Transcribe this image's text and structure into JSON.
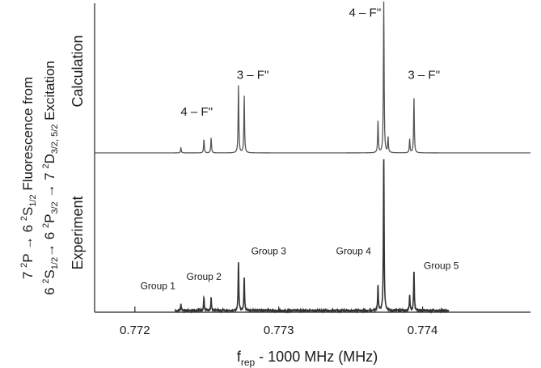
{
  "chart_data": {
    "type": "line",
    "title": "",
    "xlabel": {
      "base": "f",
      "sub": "rep",
      "rest": " - 1000 MHz (MHz)"
    },
    "ylabel_line1": [
      {
        "t": "7 "
      },
      {
        "t": "2",
        "k": "sup"
      },
      {
        "t": "P → 6 "
      },
      {
        "t": "2",
        "k": "sup"
      },
      {
        "t": "S"
      },
      {
        "t": "1/2",
        "k": "sub"
      },
      {
        "t": " Fluorescence from"
      }
    ],
    "ylabel_line2": [
      {
        "t": "6 "
      },
      {
        "t": "2",
        "k": "sup"
      },
      {
        "t": "S"
      },
      {
        "t": "1/2",
        "k": "sub"
      },
      {
        "t": "→ 6 "
      },
      {
        "t": "2",
        "k": "sup"
      },
      {
        "t": "P"
      },
      {
        "t": "3/2",
        "k": "sub"
      },
      {
        "t": " → 7 "
      },
      {
        "t": "2",
        "k": "sup"
      },
      {
        "t": "D"
      },
      {
        "t": "3/2, 5/2",
        "k": "sub"
      },
      {
        "t": " Excitation"
      }
    ],
    "xlim": [
      0.77172,
      0.77475
    ],
    "xticks": [
      0.772,
      0.773,
      0.774
    ],
    "xtick_labels": [
      "0.772",
      "0.773",
      "0.774"
    ],
    "grid": false,
    "panels": [
      {
        "label": "Calculation",
        "ylim": [
          0,
          1
        ],
        "x_range": [
          0.77172,
          0.77475
        ],
        "noise": 0.0,
        "peaks": [
          {
            "x": 0.77232,
            "h": 0.035
          },
          {
            "x": 0.77248,
            "h": 0.09
          },
          {
            "x": 0.77253,
            "h": 0.1
          },
          {
            "x": 0.77272,
            "h": 0.445
          },
          {
            "x": 0.77276,
            "h": 0.38
          },
          {
            "x": 0.77369,
            "h": 0.215
          },
          {
            "x": 0.77373,
            "h": 1.0
          },
          {
            "x": 0.77376,
            "h": 0.1
          },
          {
            "x": 0.77391,
            "h": 0.09
          },
          {
            "x": 0.77394,
            "h": 0.365
          }
        ],
        "annotations": [
          {
            "text": "4 – F''",
            "x": 0.77243,
            "y": 0.245
          },
          {
            "text": "3 – F''",
            "x": 0.77282,
            "y": 0.49
          },
          {
            "text": "4 – F''",
            "x": 0.7736,
            "y": 0.9
          },
          {
            "text": "3 – F''",
            "x": 0.77401,
            "y": 0.49
          }
        ]
      },
      {
        "label": "Experiment",
        "ylim": [
          0,
          1
        ],
        "x_range": [
          0.77228,
          0.77418
        ],
        "noise": 0.01,
        "peaks": [
          {
            "x": 0.77232,
            "h": 0.04
          },
          {
            "x": 0.77248,
            "h": 0.09
          },
          {
            "x": 0.77253,
            "h": 0.085
          },
          {
            "x": 0.77272,
            "h": 0.315
          },
          {
            "x": 0.77276,
            "h": 0.22
          },
          {
            "x": 0.77369,
            "h": 0.165
          },
          {
            "x": 0.77373,
            "h": 1.0
          },
          {
            "x": 0.77391,
            "h": 0.1
          },
          {
            "x": 0.77394,
            "h": 0.26
          }
        ],
        "annotations": [
          {
            "text": "Group 1",
            "x": 0.77216,
            "y": 0.14
          },
          {
            "text": "Group 2",
            "x": 0.77248,
            "y": 0.2
          },
          {
            "text": "Group 3",
            "x": 0.77293,
            "y": 0.365
          },
          {
            "text": "Group 4",
            "x": 0.77352,
            "y": 0.365
          },
          {
            "text": "Group 5",
            "x": 0.77413,
            "y": 0.27
          }
        ]
      }
    ]
  }
}
